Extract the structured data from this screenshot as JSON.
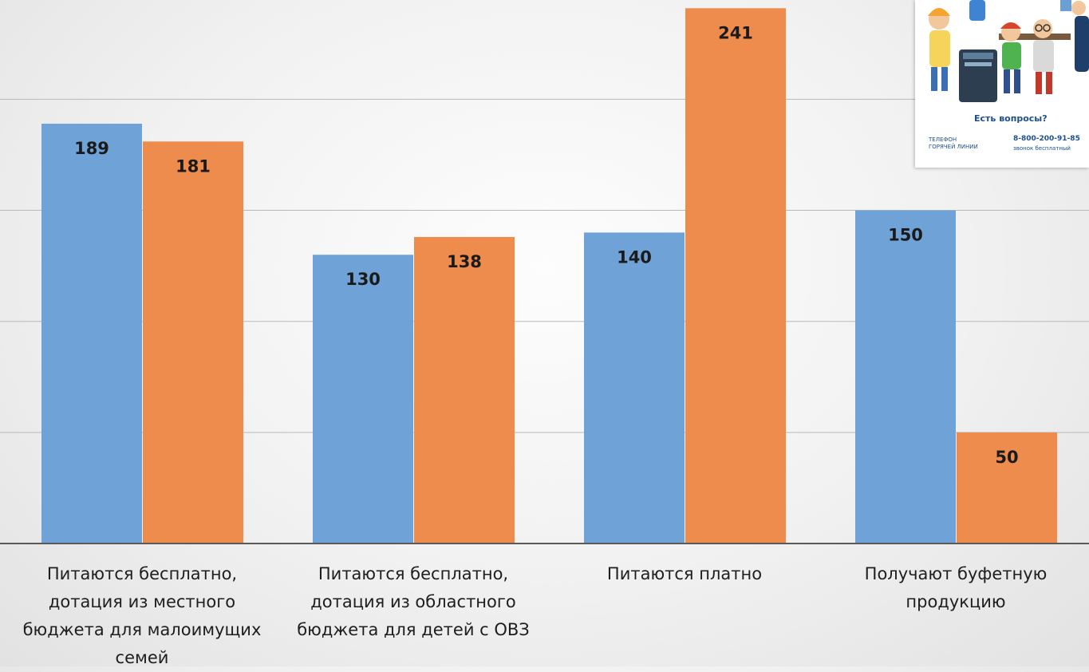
{
  "chart_data": {
    "type": "bar",
    "categories": [
      "Питаются бесплатно,\nдотация из местного\nбюджета для малоимущих\nсемей",
      "Питаются бесплатно,\nдотация из областного\nбюджета для детей с ОВЗ",
      "Питаются платно",
      "Получают буфетную\nпродукцию"
    ],
    "series": [
      {
        "values": [
          189,
          130,
          140,
          150
        ],
        "color": "#6fa3d8"
      },
      {
        "values": [
          181,
          138,
          241,
          50
        ],
        "color": "#ed8c4c"
      }
    ],
    "ylim": [
      0,
      250
    ],
    "grid": true,
    "gridline_step": 50,
    "data_labels": true
  },
  "promo": {
    "question": "Есть вопросы?",
    "hotline_label": "ТЕЛЕФОН\nГОРЯЧЕЙ ЛИНИИ",
    "phone": "8-800-200-91-85",
    "phone_note": "звонок бесплатный"
  }
}
